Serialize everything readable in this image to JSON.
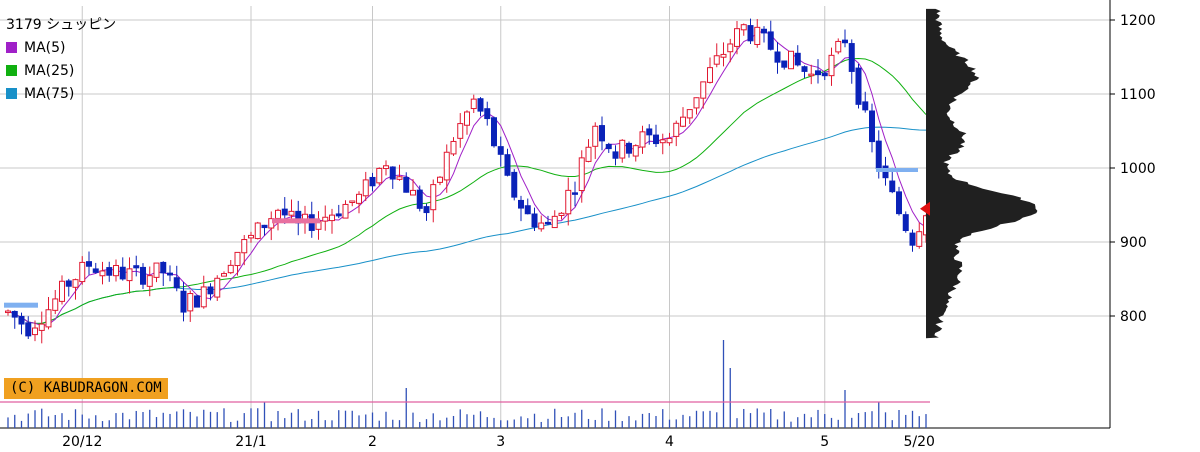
{
  "chart_data": {
    "type": "candlestick",
    "title": "3179 シュッピン",
    "legend": [
      {
        "label": "MA(5)",
        "color": "#a020c8"
      },
      {
        "label": "MA(25)",
        "color": "#10b010"
      },
      {
        "label": "MA(75)",
        "color": "#1890c8"
      }
    ],
    "credit": "(C) KABUDRAGON.COM",
    "y_ticks": [
      800,
      900,
      1000,
      1100,
      1200
    ],
    "y_range": [
      700,
      1215
    ],
    "x_ticks": [
      {
        "label": "20/12",
        "idx": 11
      },
      {
        "label": "21/1",
        "idx": 36
      },
      {
        "label": "2",
        "idx": 54
      },
      {
        "label": "3",
        "idx": 73
      },
      {
        "label": "4",
        "idx": 98
      },
      {
        "label": "5",
        "idx": 121
      },
      {
        "label": "5/20",
        "idx": 135
      }
    ],
    "current_price": 945,
    "grid": true,
    "candles_approx": "start ~805 (Nov 20) → 850-870 (Dec) → ~940 (Jan) → ~1100 peak (late Jan) → ~950 (Feb) → ~1060 (Mar) → ~1200 peak (Apr) → ~1190 (early May) → ~900 low → 945 (May 20)"
  }
}
